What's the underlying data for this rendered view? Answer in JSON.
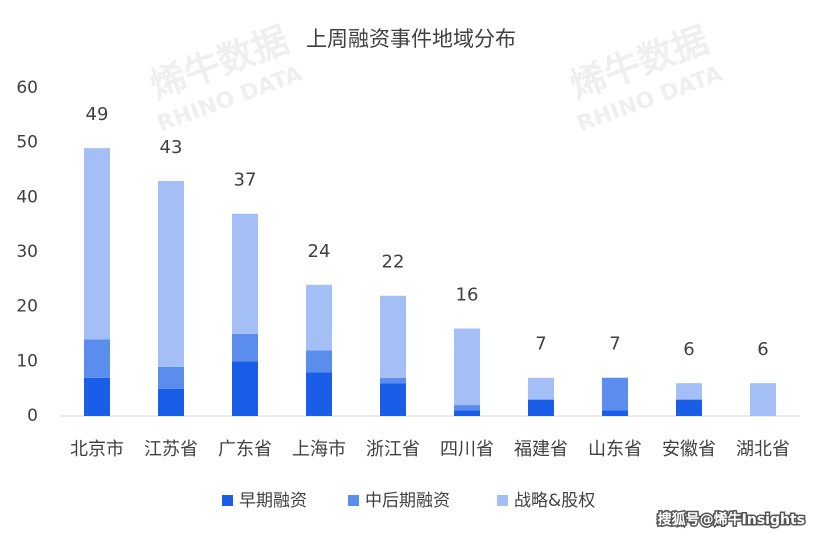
{
  "chart_data": {
    "type": "stacked_bar",
    "title": "上周融资事件地域分布",
    "categories": [
      "北京市",
      "江苏省",
      "广东省",
      "上海市",
      "浙江省",
      "四川省",
      "福建省",
      "山东省",
      "安徽省",
      "湖北省"
    ],
    "series": [
      {
        "name": "早期融资",
        "color": "#1a5ee8",
        "values": [
          7,
          5,
          10,
          8,
          6,
          1,
          3,
          1,
          3,
          0
        ]
      },
      {
        "name": "中后期融资",
        "color": "#5b8def",
        "values": [
          7,
          4,
          5,
          4,
          1,
          1,
          0,
          6,
          0,
          0
        ]
      },
      {
        "name": "战略&股权",
        "color": "#a3bff5",
        "values": [
          35,
          34,
          22,
          12,
          15,
          14,
          4,
          0,
          3,
          6
        ]
      }
    ],
    "totals": [
      49,
      43,
      37,
      24,
      22,
      16,
      7,
      7,
      6,
      6
    ],
    "ylim": [
      0,
      60
    ],
    "yticks": [
      0,
      10,
      20,
      30,
      40,
      50,
      60
    ],
    "watermark": [
      "烯牛数据",
      "RHINO DATA"
    ],
    "source": "搜狐号@烯牛Insights"
  }
}
